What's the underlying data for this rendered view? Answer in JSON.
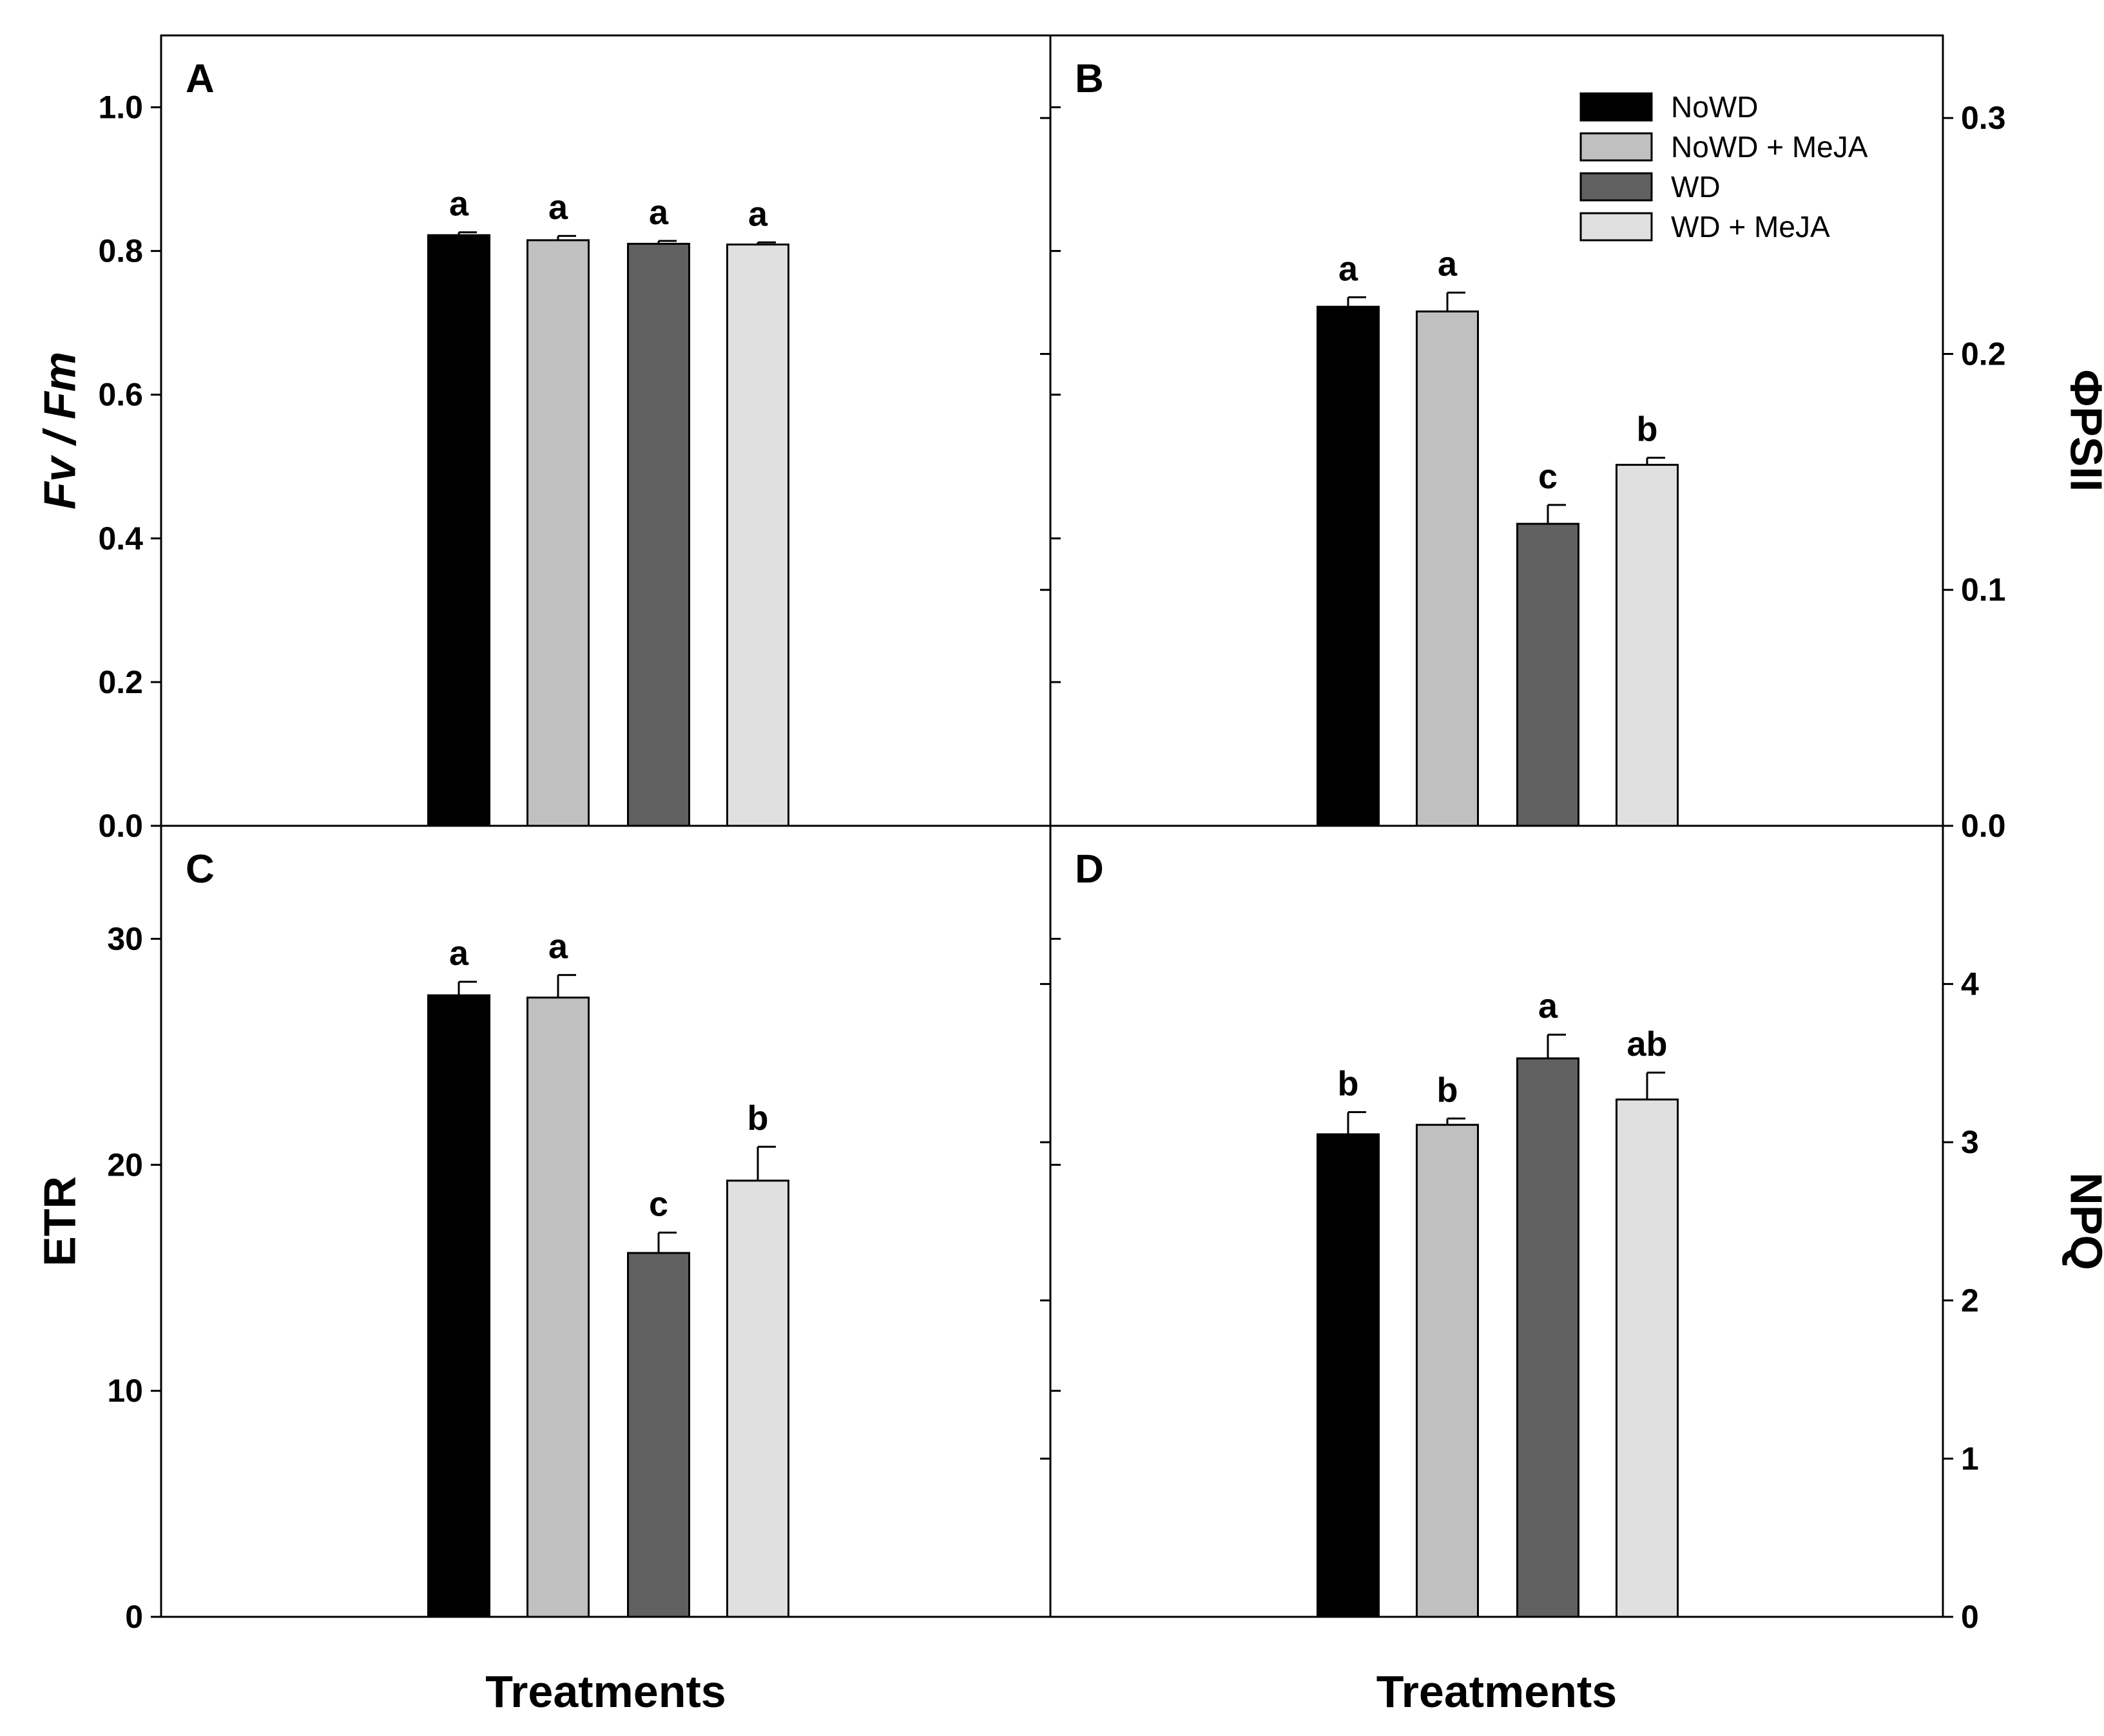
{
  "chart_data": [
    {
      "type": "bar",
      "panel": "A",
      "categories": [
        "NoWD",
        "NoWD + MeJA",
        "WD",
        "WD + MeJA"
      ],
      "values": [
        0.822,
        0.815,
        0.81,
        0.809
      ],
      "errors": [
        0.004,
        0.006,
        0.004,
        0.003
      ],
      "significance": [
        "a",
        "a",
        "a",
        "a"
      ],
      "ylabel": "Fv / Fm",
      "ylabel_side": "left",
      "ylim": [
        0,
        1.1
      ],
      "yticks": [
        "0.0",
        "0.2",
        "0.4",
        "0.6",
        "0.8",
        "1.0"
      ],
      "ytick_values": [
        0,
        0.2,
        0.4,
        0.6,
        0.8,
        1.0
      ],
      "xlabel": ""
    },
    {
      "type": "bar",
      "panel": "B",
      "categories": [
        "NoWD",
        "NoWD + MeJA",
        "WD",
        "WD + MeJA"
      ],
      "values": [
        0.22,
        0.218,
        0.128,
        0.153
      ],
      "errors": [
        0.004,
        0.008,
        0.008,
        0.003
      ],
      "significance": [
        "a",
        "a",
        "c",
        "b"
      ],
      "ylabel": "ΦPSII",
      "ylabel_side": "right",
      "ylim": [
        0,
        0.335
      ],
      "yticks": [
        "0.0",
        "0.1",
        "0.2",
        "0.3"
      ],
      "ytick_values": [
        0,
        0.1,
        0.2,
        0.3
      ],
      "xlabel": ""
    },
    {
      "type": "bar",
      "panel": "C",
      "categories": [
        "NoWD",
        "NoWD + MeJA",
        "WD",
        "WD + MeJA"
      ],
      "values": [
        27.5,
        27.4,
        16.1,
        19.3
      ],
      "errors": [
        0.6,
        1.0,
        0.9,
        1.5
      ],
      "significance": [
        "a",
        "a",
        "c",
        "b"
      ],
      "ylabel": "ETR",
      "ylabel_side": "left",
      "ylim": [
        0,
        35
      ],
      "yticks": [
        "0",
        "10",
        "20",
        "30"
      ],
      "ytick_values": [
        0,
        10,
        20,
        30
      ],
      "xlabel": "Treatments"
    },
    {
      "type": "bar",
      "panel": "D",
      "categories": [
        "NoWD",
        "NoWD + MeJA",
        "WD",
        "WD + MeJA"
      ],
      "values": [
        3.05,
        3.11,
        3.53,
        3.27
      ],
      "errors": [
        0.14,
        0.04,
        0.15,
        0.17
      ],
      "significance": [
        "b",
        "b",
        "a",
        "ab"
      ],
      "ylabel": "NPQ",
      "ylabel_side": "right",
      "ylim": [
        0,
        5
      ],
      "yticks": [
        "0",
        "1",
        "2",
        "3",
        "4"
      ],
      "ytick_values": [
        0,
        1,
        2,
        3,
        4
      ],
      "xlabel": "Treatments"
    }
  ],
  "legend": {
    "placement": "top-right of panel B",
    "items": [
      {
        "label": "NoWD",
        "color": "#000000"
      },
      {
        "label": "NoWD + MeJA",
        "color": "#c0c0c0"
      },
      {
        "label": "WD",
        "color": "#606060"
      },
      {
        "label": "WD + MeJA",
        "color": "#e0e0e0"
      }
    ]
  }
}
